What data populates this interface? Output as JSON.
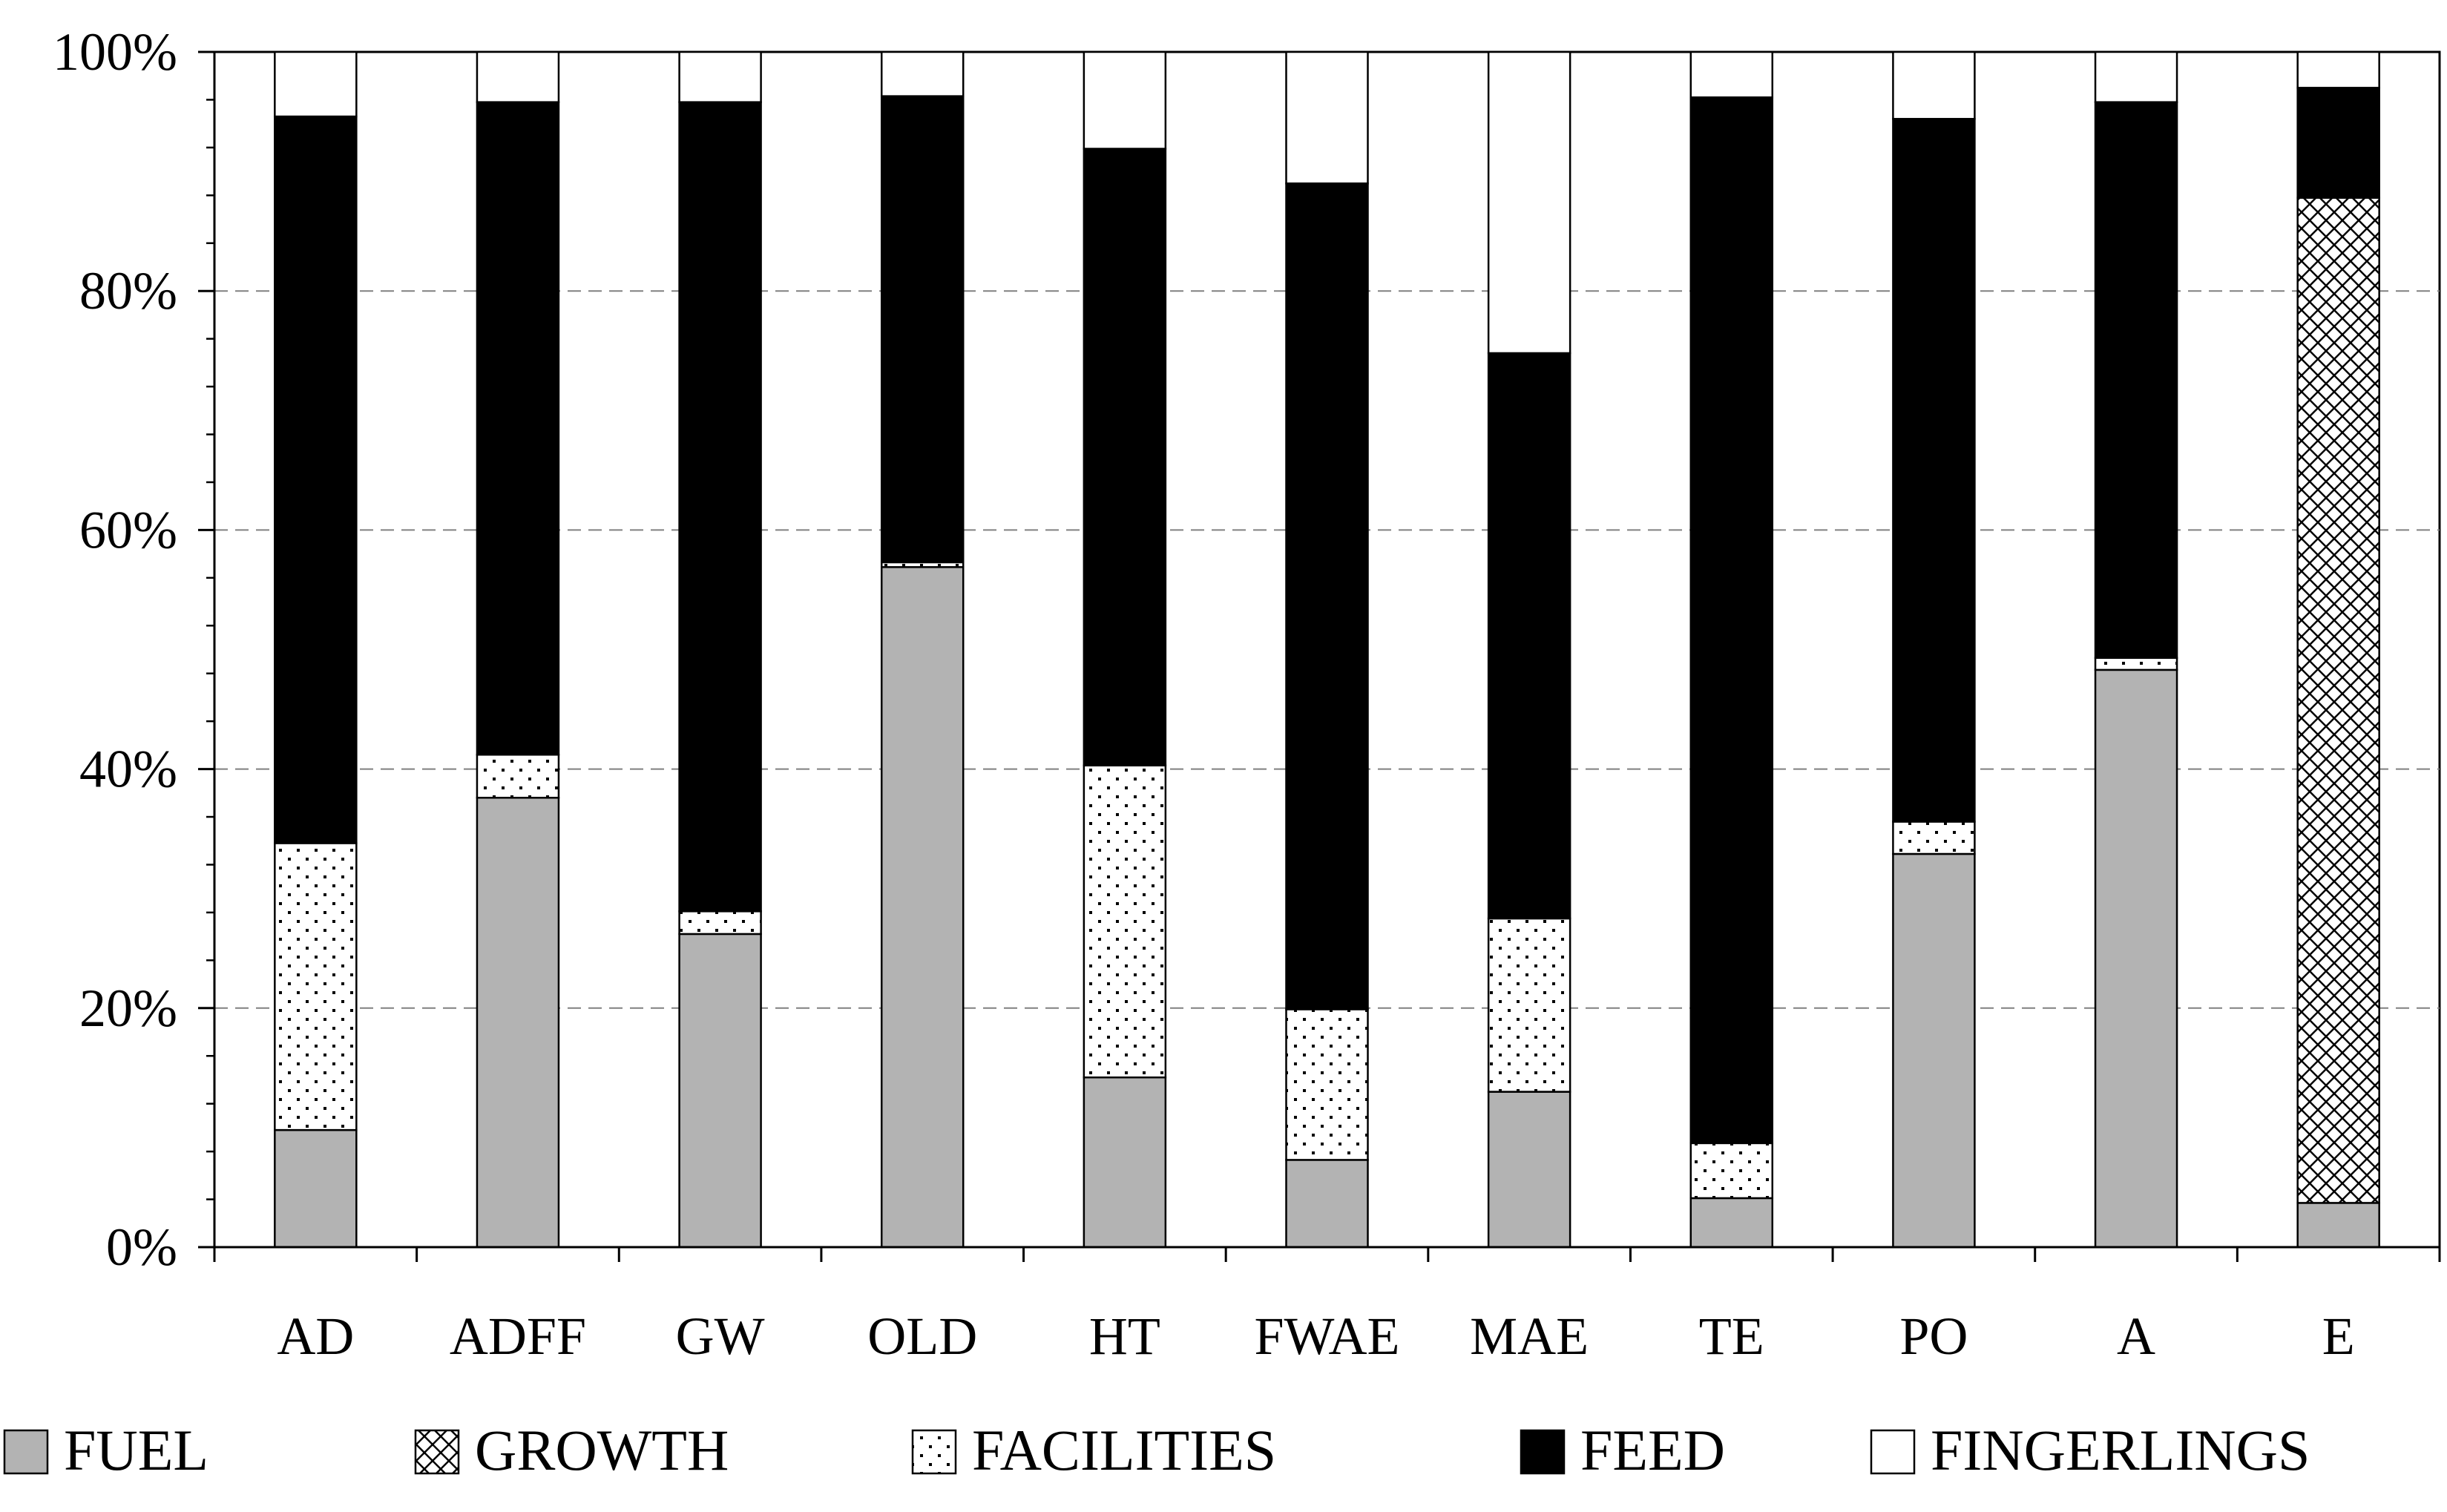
{
  "chart_data": {
    "type": "bar",
    "stacked": true,
    "title": "",
    "xlabel": "",
    "ylabel": "",
    "ylim": [
      0,
      100
    ],
    "y_ticks": [
      0,
      20,
      40,
      60,
      80,
      100
    ],
    "y_tick_labels": [
      "0%",
      "20%",
      "40%",
      "60%",
      "80%",
      "100%"
    ],
    "grid": "horizontal-dashed",
    "legend_position": "bottom",
    "categories": [
      "AD",
      "ADFF",
      "GW",
      "OLD",
      "HT",
      "FWAE",
      "MAE",
      "TE",
      "PO",
      "A",
      "E"
    ],
    "series": [
      {
        "name": "FUEL",
        "pattern": "gray",
        "color": "#b3b3b3",
        "values": [
          9.8,
          37.6,
          26.2,
          56.9,
          14.2,
          7.3,
          13.0,
          4.1,
          32.9,
          48.3,
          3.7
        ]
      },
      {
        "name": "GROWTH",
        "pattern": "crosshatch",
        "color": "#ffffff",
        "values": [
          0,
          0,
          0,
          0,
          0,
          0,
          0,
          0,
          0,
          0,
          84.1
        ]
      },
      {
        "name": "FACILITIES",
        "pattern": "dots",
        "color": "#ffffff",
        "values": [
          24.0,
          3.6,
          1.9,
          0.4,
          26.1,
          12.6,
          14.5,
          4.6,
          2.7,
          1.0,
          0
        ]
      },
      {
        "name": "FEED",
        "pattern": "black",
        "color": "#000000",
        "values": [
          60.8,
          54.6,
          67.7,
          39.0,
          51.6,
          69.1,
          47.3,
          87.5,
          58.8,
          46.5,
          9.2
        ]
      },
      {
        "name": "FINGERLINGS",
        "pattern": "white",
        "color": "#ffffff",
        "values": [
          5.4,
          4.2,
          4.2,
          3.7,
          8.1,
          11.0,
          25.2,
          3.8,
          5.6,
          4.2,
          3.0
        ]
      }
    ]
  }
}
